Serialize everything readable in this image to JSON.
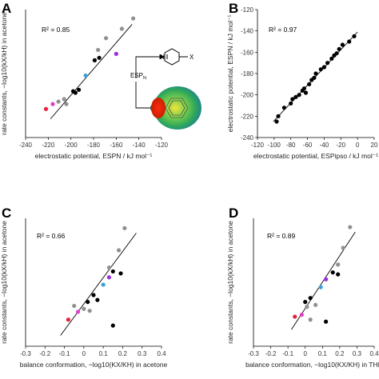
{
  "figure": {
    "panels": [
      {
        "label": "A"
      },
      {
        "label": "B"
      },
      {
        "label": "C"
      },
      {
        "label": "D"
      }
    ],
    "annotations": {
      "esp_label": "ESP",
      "esp_sub": "N",
      "substituent": "X"
    }
  },
  "chart_data": [
    {
      "panel": "A",
      "type": "scatter",
      "annotation": "R² = 0.85",
      "xlabel": "electrostatic potential, ESPN / kJ mol⁻¹",
      "ylabel": "rate constants, −log10(kX/kH) in acetone",
      "xlim": [
        -240,
        -120
      ],
      "ylim": [
        -1.0,
        1.6
      ],
      "xticks": [
        "-240",
        "-220",
        "-200",
        "-180",
        "-160",
        "-140",
        "-120"
      ],
      "yticks": [],
      "points": [
        {
          "x": -222,
          "y": -0.42,
          "color": "#e8203c"
        },
        {
          "x": -216,
          "y": -0.32,
          "color": "#e040c8"
        },
        {
          "x": -211,
          "y": -0.27,
          "color": "#909090"
        },
        {
          "x": -206,
          "y": -0.22,
          "color": "#909090"
        },
        {
          "x": -204,
          "y": -0.32,
          "color": "#909090"
        },
        {
          "x": -198,
          "y": -0.06,
          "color": "#000000"
        },
        {
          "x": -196,
          "y": -0.09,
          "color": "#000000"
        },
        {
          "x": -193,
          "y": -0.03,
          "color": "#000000"
        },
        {
          "x": -187,
          "y": 0.26,
          "color": "#3aa0dc"
        },
        {
          "x": -179,
          "y": 0.57,
          "color": "#000000"
        },
        {
          "x": -175,
          "y": 0.62,
          "color": "#000000"
        },
        {
          "x": -176,
          "y": 0.78,
          "color": "#909090"
        },
        {
          "x": -169,
          "y": 1.02,
          "color": "#909090"
        },
        {
          "x": -160,
          "y": 0.7,
          "color": "#9a2ee0"
        },
        {
          "x": -155,
          "y": 1.21,
          "color": "#909090"
        },
        {
          "x": -145,
          "y": 1.42,
          "color": "#909090"
        }
      ],
      "fit": {
        "x": [
          -218,
          -146
        ],
        "y": [
          -0.62,
          1.3
        ]
      }
    },
    {
      "panel": "B",
      "type": "scatter",
      "annotation": "R² = 0.97",
      "xlabel": "electrostatic potential, ESPipso / kJ mol⁻¹",
      "ylabel": "electrostatic potential, ESPN / kJ mol⁻¹",
      "xlim": [
        -120,
        20
      ],
      "ylim": [
        -240,
        -120
      ],
      "xticks": [
        "-120",
        "-100",
        "-80",
        "-60",
        "-40",
        "-20",
        "0",
        "20"
      ],
      "yticks": [
        "-240",
        "-220",
        "-200",
        "-180",
        "-160",
        "-140",
        "-120"
      ],
      "points": [
        {
          "x": -97,
          "y": -225
        },
        {
          "x": -95,
          "y": -220
        },
        {
          "x": -88,
          "y": -212
        },
        {
          "x": -80,
          "y": -208
        },
        {
          "x": -78,
          "y": -204
        },
        {
          "x": -74,
          "y": -202
        },
        {
          "x": -70,
          "y": -200
        },
        {
          "x": -66,
          "y": -196
        },
        {
          "x": -64,
          "y": -194
        },
        {
          "x": -62,
          "y": -198
        },
        {
          "x": -58,
          "y": -190
        },
        {
          "x": -55,
          "y": -186
        },
        {
          "x": -52,
          "y": -184
        },
        {
          "x": -50,
          "y": -180
        },
        {
          "x": -44,
          "y": -176
        },
        {
          "x": -40,
          "y": -174
        },
        {
          "x": -36,
          "y": -170
        },
        {
          "x": -31,
          "y": -166
        },
        {
          "x": -28,
          "y": -163
        },
        {
          "x": -25,
          "y": -161
        },
        {
          "x": -22,
          "y": -157
        },
        {
          "x": -18,
          "y": -153
        },
        {
          "x": -10,
          "y": -150
        },
        {
          "x": -4,
          "y": -145
        }
      ],
      "fit": {
        "x": [
          -101,
          0
        ],
        "y": [
          -225,
          -141
        ]
      }
    },
    {
      "panel": "C",
      "type": "scatter",
      "annotation": "R² = 0.66",
      "xlabel": "balance conformation, −log10(KX/KH) in acetone",
      "ylabel": "rate constants, −log10(kX/kH) in acetone",
      "xlim": [
        -0.3,
        0.4
      ],
      "ylim": [
        -1.0,
        1.6
      ],
      "xticks": [
        "-0.3",
        "-0.2",
        "-0.1",
        "0",
        "0.1",
        "0.2",
        "0.3",
        "0.4"
      ],
      "yticks": [],
      "points": [
        {
          "x": -0.08,
          "y": -0.46,
          "color": "#e8203c"
        },
        {
          "x": -0.03,
          "y": -0.3,
          "color": "#e040c8"
        },
        {
          "x": -0.05,
          "y": -0.18,
          "color": "#909090"
        },
        {
          "x": 0.0,
          "y": -0.24,
          "color": "#909090"
        },
        {
          "x": 0.02,
          "y": -0.1,
          "color": "#000000"
        },
        {
          "x": 0.05,
          "y": 0.04,
          "color": "#000000"
        },
        {
          "x": 0.03,
          "y": -0.28,
          "color": "#909090"
        },
        {
          "x": 0.07,
          "y": -0.06,
          "color": "#000000"
        },
        {
          "x": 0.1,
          "y": 0.25,
          "color": "#3aa0dc"
        },
        {
          "x": 0.13,
          "y": 0.4,
          "color": "#9a2ee0"
        },
        {
          "x": 0.13,
          "y": 0.6,
          "color": "#909090"
        },
        {
          "x": 0.15,
          "y": 0.52,
          "color": "#000000"
        },
        {
          "x": 0.19,
          "y": 0.48,
          "color": "#000000"
        },
        {
          "x": 0.18,
          "y": 0.95,
          "color": "#909090"
        },
        {
          "x": 0.21,
          "y": 1.4,
          "color": "#909090"
        },
        {
          "x": 0.15,
          "y": -0.58,
          "color": "#000000"
        }
      ],
      "fit": {
        "x": [
          -0.12,
          0.27
        ],
        "y": [
          -0.78,
          1.3
        ]
      }
    },
    {
      "panel": "D",
      "type": "scatter",
      "annotation": "R² = 0.89",
      "xlabel": "balance conformation, −log10(KX/KH) in THF",
      "ylabel": "rate constants, −log10(kX/kH) in acetone",
      "xlim": [
        -0.3,
        0.4
      ],
      "ylim": [
        -1.0,
        1.6
      ],
      "xticks": [
        "-0.3",
        "-0.2",
        "-0.1",
        "0",
        "0.1",
        "0.2",
        "0.3",
        "0.4"
      ],
      "yticks": [],
      "points": [
        {
          "x": -0.06,
          "y": -0.4,
          "color": "#e8203c"
        },
        {
          "x": -0.02,
          "y": -0.36,
          "color": "#e040c8"
        },
        {
          "x": 0.0,
          "y": -0.1,
          "color": "#000000"
        },
        {
          "x": 0.01,
          "y": -0.2,
          "color": "#909090"
        },
        {
          "x": 0.03,
          "y": -0.02,
          "color": "#000000"
        },
        {
          "x": 0.03,
          "y": -0.46,
          "color": "#909090"
        },
        {
          "x": 0.06,
          "y": -0.16,
          "color": "#909090"
        },
        {
          "x": 0.09,
          "y": 0.2,
          "color": "#3aa0dc"
        },
        {
          "x": 0.12,
          "y": 0.36,
          "color": "#9a2ee0"
        },
        {
          "x": 0.16,
          "y": 0.5,
          "color": "#000000"
        },
        {
          "x": 0.19,
          "y": 0.46,
          "color": "#000000"
        },
        {
          "x": 0.19,
          "y": 0.66,
          "color": "#909090"
        },
        {
          "x": 0.22,
          "y": 1.0,
          "color": "#909090"
        },
        {
          "x": 0.26,
          "y": 1.42,
          "color": "#909090"
        },
        {
          "x": 0.12,
          "y": -0.5,
          "color": "#000000"
        }
      ],
      "fit": {
        "x": [
          -0.08,
          0.29
        ],
        "y": [
          -0.66,
          1.32
        ]
      }
    }
  ]
}
